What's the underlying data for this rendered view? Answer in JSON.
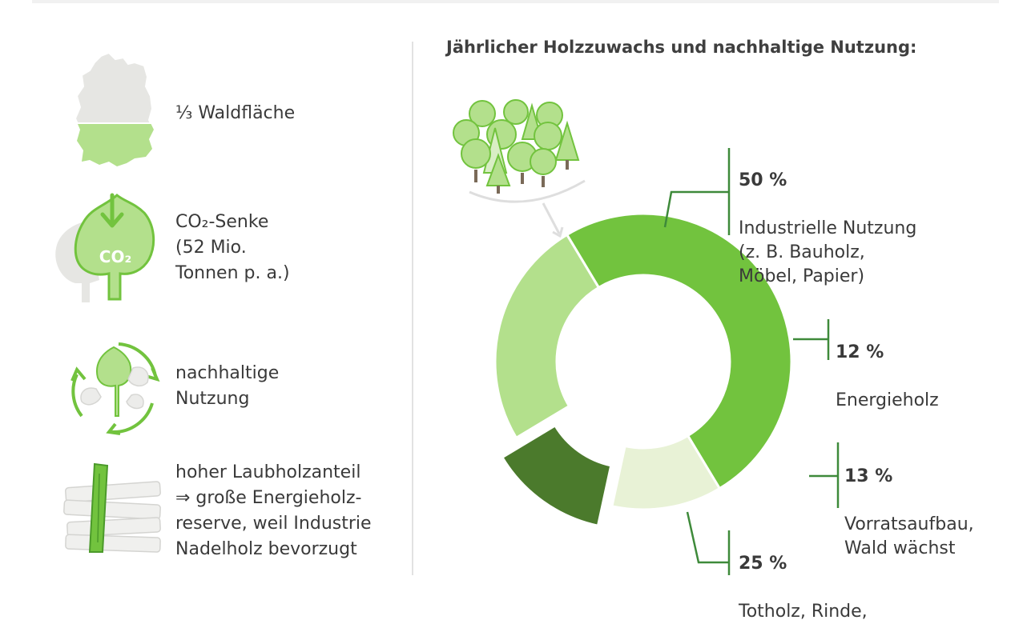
{
  "facts": [
    {
      "text": "⅓ Waldfläche",
      "icon": "germany-map-icon"
    },
    {
      "text": "CO₂-Senke\n(52 Mio.\nTonnen p. a.)",
      "icon": "leaf-co2-icon",
      "icon_text": "CO₂"
    },
    {
      "text": "nachhaltige\nNutzung",
      "icon": "leaf-cycle-icon"
    },
    {
      "text": "hoher Laubholzanteil\n⇒ große Energieholz-\nreserve, weil Industrie\nNadelholz bevorzugt",
      "icon": "wood-pile-icon"
    }
  ],
  "chart_data": {
    "type": "pie",
    "title": "Jährlicher Holzzuwachs und nachhaltige Nutzung:",
    "unit": "%",
    "slices": [
      {
        "label": "Industrielle Nutzung\n(z. B. Bauholz,\nMöbel, Papier)",
        "percent_text": "50 %",
        "value": 50,
        "color": "#72c33e"
      },
      {
        "label": "Energieholz",
        "percent_text": "12 %",
        "value": 12,
        "color": "#e8f2d6"
      },
      {
        "label": "Vorratsaufbau,\nWald wächst",
        "percent_text": "13 %",
        "value": 13,
        "color": "#4b7a2c",
        "exploded": true
      },
      {
        "label": "Totholz, Rinde,",
        "percent_text": "25 %",
        "value": 25,
        "color": "#b3e08c"
      }
    ]
  },
  "colors": {
    "accent_green": "#72c33e",
    "light_green": "#b3e08c",
    "pale_green": "#e8f2d6",
    "dark_green": "#4b7a2c",
    "leader_line": "#3e8a3a",
    "grey_icon": "#e4e4e2"
  }
}
